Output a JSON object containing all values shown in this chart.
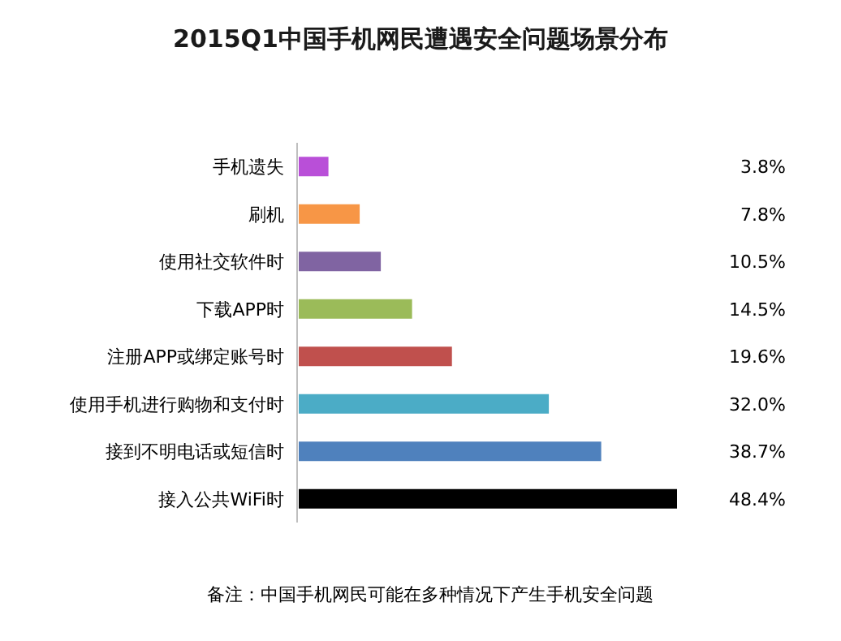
{
  "chart_data": {
    "type": "bar",
    "orientation": "horizontal",
    "title": "2015Q1中国手机网民遭遇安全问题场景分布",
    "categories": [
      "手机遗失",
      "刷机",
      "使用社交软件时",
      "下载APP时",
      "注册APP或绑定账号时",
      "使用手机进行购物和支付时",
      "接到不明电话或短信时",
      "接入公共WiFi时"
    ],
    "values": [
      3.8,
      7.8,
      10.5,
      14.5,
      19.6,
      32.0,
      38.7,
      48.4
    ],
    "value_labels": [
      "3.8%",
      "7.8%",
      "10.5%",
      "14.5%",
      "19.6%",
      "32.0%",
      "38.7%",
      "48.4%"
    ],
    "colors": [
      "#b94fd8",
      "#f79646",
      "#8064a2",
      "#9bbb59",
      "#c0504d",
      "#4bacc6",
      "#4f81bd",
      "#000000"
    ],
    "annotations": [
      "备注：中国手机网民可能在多种情况下产生手机安全问题"
    ]
  }
}
